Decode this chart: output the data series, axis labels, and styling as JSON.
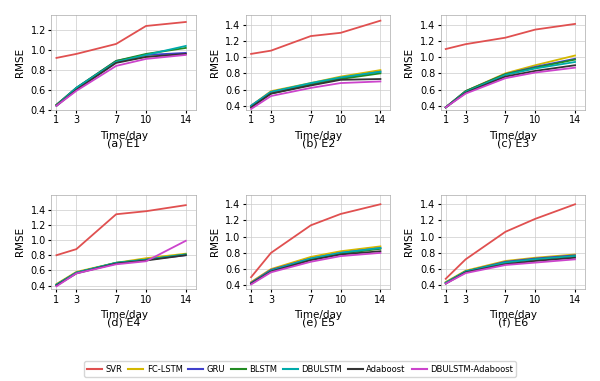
{
  "x": [
    1,
    3,
    7,
    10,
    14
  ],
  "panels": [
    {
      "label": "(a) E1",
      "ylim": [
        0.4,
        1.35
      ],
      "yticks": [
        0.4,
        0.6,
        0.8,
        1.0,
        1.2
      ],
      "series": {
        "SVR": [
          0.92,
          0.96,
          1.06,
          1.24,
          1.28
        ],
        "FC-LSTM": [
          0.45,
          0.6,
          0.88,
          0.93,
          0.96
        ],
        "GRU": [
          0.45,
          0.62,
          0.89,
          0.95,
          0.97
        ],
        "BLSTM": [
          0.45,
          0.62,
          0.89,
          0.96,
          1.02
        ],
        "DBULSTM": [
          0.44,
          0.62,
          0.88,
          0.95,
          1.04
        ],
        "Adaboost": [
          0.44,
          0.6,
          0.87,
          0.93,
          0.96
        ],
        "DBULSTM-Adaboost": [
          0.44,
          0.59,
          0.84,
          0.91,
          0.95
        ]
      }
    },
    {
      "label": "(b) E2",
      "ylim": [
        0.35,
        1.52
      ],
      "yticks": [
        0.4,
        0.6,
        0.8,
        1.0,
        1.2,
        1.4
      ],
      "series": {
        "SVR": [
          1.04,
          1.08,
          1.26,
          1.3,
          1.45
        ],
        "FC-LSTM": [
          0.4,
          0.58,
          0.68,
          0.76,
          0.84
        ],
        "GRU": [
          0.4,
          0.57,
          0.67,
          0.74,
          0.82
        ],
        "BLSTM": [
          0.38,
          0.55,
          0.66,
          0.73,
          0.8
        ],
        "DBULSTM": [
          0.4,
          0.57,
          0.68,
          0.75,
          0.82
        ],
        "Adaboost": [
          0.38,
          0.55,
          0.65,
          0.72,
          0.73
        ],
        "DBULSTM-Adaboost": [
          0.36,
          0.52,
          0.62,
          0.68,
          0.7
        ]
      }
    },
    {
      "label": "(c) E3",
      "ylim": [
        0.35,
        1.52
      ],
      "yticks": [
        0.4,
        0.6,
        0.8,
        1.0,
        1.2,
        1.4
      ],
      "series": {
        "SVR": [
          1.1,
          1.16,
          1.24,
          1.34,
          1.41
        ],
        "FC-LSTM": [
          0.38,
          0.58,
          0.8,
          0.9,
          1.02
        ],
        "GRU": [
          0.38,
          0.58,
          0.79,
          0.88,
          0.98
        ],
        "BLSTM": [
          0.38,
          0.58,
          0.79,
          0.87,
          0.97
        ],
        "DBULSTM": [
          0.38,
          0.57,
          0.78,
          0.86,
          0.94
        ],
        "Adaboost": [
          0.38,
          0.56,
          0.76,
          0.83,
          0.9
        ],
        "DBULSTM-Adaboost": [
          0.38,
          0.55,
          0.74,
          0.81,
          0.87
        ]
      }
    },
    {
      "label": "(d) E4",
      "ylim": [
        0.35,
        1.6
      ],
      "yticks": [
        0.4,
        0.6,
        0.8,
        1.0,
        1.2,
        1.4
      ],
      "series": {
        "SVR": [
          0.8,
          0.88,
          1.34,
          1.38,
          1.46
        ],
        "FC-LSTM": [
          0.42,
          0.58,
          0.7,
          0.76,
          0.82
        ],
        "GRU": [
          0.41,
          0.57,
          0.69,
          0.74,
          0.8
        ],
        "BLSTM": [
          0.41,
          0.57,
          0.7,
          0.74,
          0.81
        ],
        "DBULSTM": [
          0.41,
          0.57,
          0.7,
          0.74,
          0.81
        ],
        "Adaboost": [
          0.4,
          0.56,
          0.69,
          0.73,
          0.8
        ],
        "DBULSTM-Adaboost": [
          0.39,
          0.56,
          0.68,
          0.72,
          0.99
        ]
      }
    },
    {
      "label": "(e) E5",
      "ylim": [
        0.35,
        1.52
      ],
      "yticks": [
        0.4,
        0.6,
        0.8,
        1.0,
        1.2,
        1.4
      ],
      "series": {
        "SVR": [
          0.5,
          0.8,
          1.14,
          1.28,
          1.4
        ],
        "FC-LSTM": [
          0.44,
          0.6,
          0.75,
          0.82,
          0.88
        ],
        "GRU": [
          0.43,
          0.59,
          0.73,
          0.8,
          0.86
        ],
        "BLSTM": [
          0.42,
          0.58,
          0.72,
          0.79,
          0.85
        ],
        "DBULSTM": [
          0.42,
          0.58,
          0.73,
          0.8,
          0.86
        ],
        "Adaboost": [
          0.42,
          0.57,
          0.71,
          0.78,
          0.82
        ],
        "DBULSTM-Adaboost": [
          0.41,
          0.56,
          0.69,
          0.76,
          0.8
        ]
      }
    },
    {
      "label": "(f) E6",
      "ylim": [
        0.35,
        1.52
      ],
      "yticks": [
        0.4,
        0.6,
        0.8,
        1.0,
        1.2,
        1.4
      ],
      "series": {
        "SVR": [
          0.48,
          0.72,
          1.06,
          1.22,
          1.4
        ],
        "FC-LSTM": [
          0.44,
          0.58,
          0.7,
          0.74,
          0.78
        ],
        "GRU": [
          0.43,
          0.57,
          0.69,
          0.73,
          0.77
        ],
        "BLSTM": [
          0.43,
          0.57,
          0.68,
          0.72,
          0.76
        ],
        "DBULSTM": [
          0.43,
          0.57,
          0.68,
          0.72,
          0.76
        ],
        "Adaboost": [
          0.42,
          0.56,
          0.66,
          0.7,
          0.74
        ],
        "DBULSTM-Adaboost": [
          0.42,
          0.55,
          0.65,
          0.68,
          0.72
        ]
      }
    }
  ],
  "colors": {
    "SVR": "#e05050",
    "FC-LSTM": "#d4b800",
    "GRU": "#4040cc",
    "BLSTM": "#228B22",
    "DBULSTM": "#00aaaa",
    "Adaboost": "#333333",
    "DBULSTM-Adaboost": "#cc44cc"
  },
  "xticks": [
    1,
    3,
    7,
    10,
    14
  ],
  "xlabel": "Time/day",
  "ylabel": "RMSE",
  "background_color": "#ffffff",
  "grid_color": "#cccccc",
  "title_fontsize": 8,
  "tick_fontsize": 7,
  "label_fontsize": 7.5,
  "legend_fontsize": 6,
  "linewidth": 1.3
}
